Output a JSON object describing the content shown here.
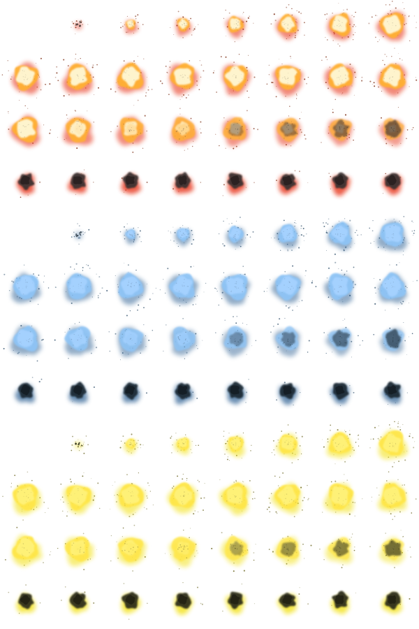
{
  "sprite_sheet": {
    "columns": 8,
    "rows_per_set": 4,
    "sets": [
      {
        "name": "fire",
        "core": "#fff8d6",
        "mid": "#ffb030",
        "glow": "#e62a10",
        "smoke": "#3a3330",
        "spark": "#7a2a10"
      },
      {
        "name": "ice",
        "core": "#a6d2ff",
        "mid": "#8ec4f6",
        "glow": "#3a6a9a",
        "smoke": "#1c2a36",
        "spark": "#2a4a66"
      },
      {
        "name": "electric",
        "core": "#fff27a",
        "mid": "#ffe64a",
        "glow": "#f2e010",
        "smoke": "#2e2e1c",
        "spark": "#6a6420"
      }
    ],
    "frame_phases": [
      "spark",
      "spark",
      "ignite",
      "ignite",
      "expand",
      "expand",
      "expand",
      "expand",
      "peak",
      "peak",
      "peak",
      "peak",
      "peak",
      "peak",
      "peak",
      "peak",
      "fade",
      "fade",
      "fade",
      "fade",
      "fade",
      "fade",
      "fade",
      "fade",
      "smoke",
      "smoke",
      "smoke",
      "smoke",
      "smoke",
      "smoke",
      "smoke",
      "smoke"
    ]
  }
}
